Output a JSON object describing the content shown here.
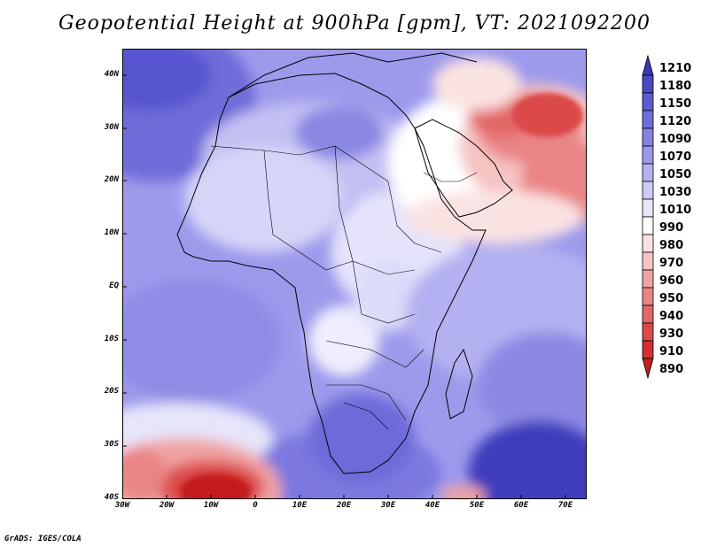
{
  "title": "Geopotential Height at 900hPa [gpm], VT: 2021092200",
  "credit": "GrADS: IGES/COLA",
  "y_ticks": [
    "40N",
    "30N",
    "20N",
    "10N",
    "EQ",
    "10S",
    "20S",
    "30S",
    "40S"
  ],
  "x_ticks": [
    "30W",
    "20W",
    "10W",
    "0",
    "10E",
    "20E",
    "30E",
    "40E",
    "50E",
    "60E",
    "70E"
  ],
  "colorbar": {
    "levels": [
      "1210",
      "1180",
      "1150",
      "1120",
      "1090",
      "1070",
      "1050",
      "1030",
      "1010",
      "990",
      "980",
      "970",
      "960",
      "950",
      "940",
      "930",
      "910",
      "890"
    ],
    "colors": [
      "#3a37b8",
      "#4b48c6",
      "#5d5ad3",
      "#716edc",
      "#8582e4",
      "#9c99ea",
      "#b3b1f0",
      "#cccaf6",
      "#e6e5fb",
      "#ffffff",
      "#fbe2e2",
      "#f6c3c3",
      "#f0a3a3",
      "#ea8585",
      "#e36767",
      "#dc4949",
      "#d33030",
      "#c41e1e"
    ]
  }
}
